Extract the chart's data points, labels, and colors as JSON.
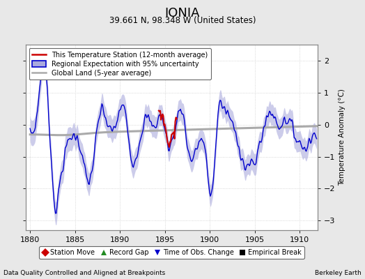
{
  "title": "IONIA",
  "subtitle": "39.661 N, 98.348 W (United States)",
  "xlabel_bottom_left": "Data Quality Controlled and Aligned at Breakpoints",
  "xlabel_bottom_right": "Berkeley Earth",
  "ylabel_right": "Temperature Anomaly (°C)",
  "xlim": [
    1879.5,
    1912.0
  ],
  "ylim": [
    -3.3,
    2.5
  ],
  "yticks": [
    -3,
    -2,
    -1,
    0,
    1,
    2
  ],
  "xticks": [
    1880,
    1885,
    1890,
    1895,
    1900,
    1905,
    1910
  ],
  "background_color": "#e8e8e8",
  "plot_bg_color": "#ffffff",
  "grid_color": "#cccccc",
  "regional_line_color": "#0000cc",
  "regional_fill_color": "#aaaadd",
  "station_color": "#cc0000",
  "global_land_color": "#aaaaaa",
  "legend_items": [
    {
      "label": "This Temperature Station (12-month average)",
      "color": "#cc0000",
      "lw": 2
    },
    {
      "label": "Regional Expectation with 95% uncertainty",
      "color": "#0000cc",
      "lw": 2
    },
    {
      "label": "Global Land (5-year average)",
      "color": "#aaaaaa",
      "lw": 2
    }
  ],
  "bottom_legend": [
    {
      "label": "Station Move",
      "color": "#cc0000",
      "marker": "D"
    },
    {
      "label": "Record Gap",
      "color": "#228B22",
      "marker": "^"
    },
    {
      "label": "Time of Obs. Change",
      "color": "#0000cc",
      "marker": "v"
    },
    {
      "label": "Empirical Break",
      "color": "#000000",
      "marker": "s"
    }
  ],
  "seed": 42
}
